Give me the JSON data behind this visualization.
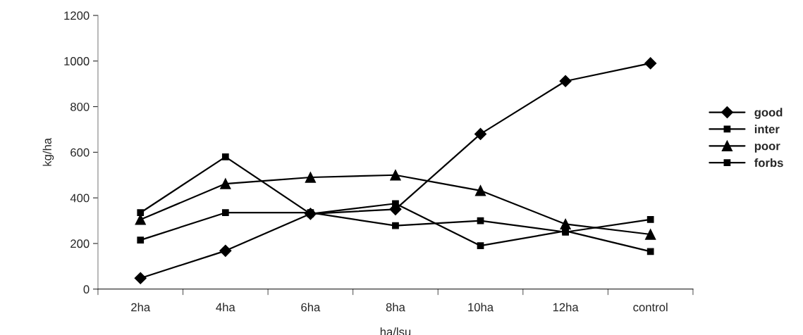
{
  "chart_data": {
    "type": "line",
    "xlabel": "ha/lsu",
    "ylabel": "kg/ha",
    "categories": [
      "2ha",
      "4ha",
      "6ha",
      "8ha",
      "10ha",
      "12ha",
      "control"
    ],
    "series": [
      {
        "name": "good",
        "color": "#000000",
        "marker": "diamond",
        "values": [
          48,
          168,
          330,
          350,
          680,
          912,
          990
        ]
      },
      {
        "name": "inter",
        "color": "#000000",
        "marker": "square",
        "values": [
          335,
          580,
          330,
          375,
          190,
          255,
          165
        ]
      },
      {
        "name": "poor",
        "color": "#000000",
        "marker": "triangle",
        "values": [
          305,
          462,
          490,
          500,
          432,
          285,
          240
        ]
      },
      {
        "name": "forbs",
        "color": "#000000",
        "marker": "square",
        "values": [
          215,
          335,
          335,
          278,
          300,
          250,
          305
        ]
      }
    ],
    "ylim": [
      0,
      1200
    ],
    "yticks": [
      0,
      200,
      400,
      600,
      800,
      1000,
      1200
    ],
    "grid": false,
    "legend": "right"
  }
}
